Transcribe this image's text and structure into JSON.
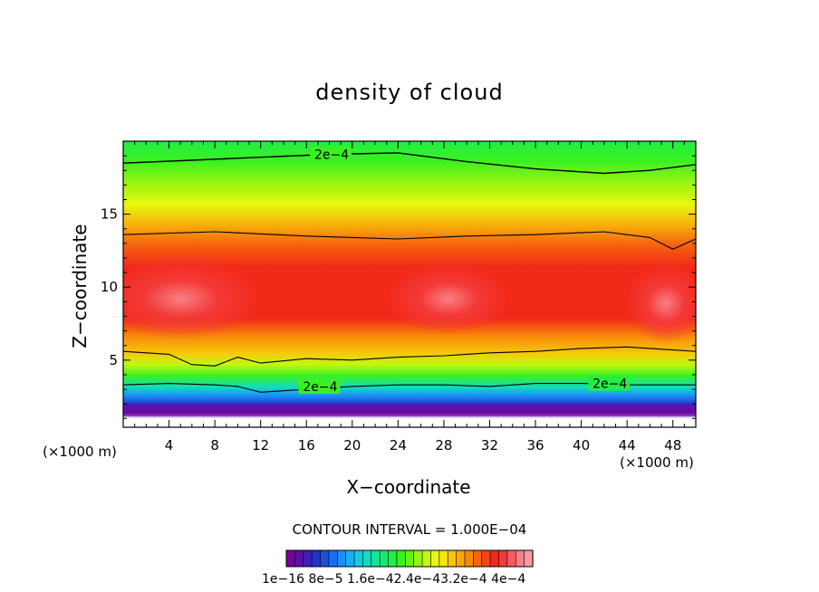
{
  "chart_data": {
    "type": "heatmap",
    "title": "density of cloud",
    "xlabel": "X−coordinate",
    "ylabel": "Z−coordinate",
    "x_unit_label": "(×1000 m)",
    "y_unit_label": "(×1000 m)",
    "xlim": [
      0,
      50
    ],
    "ylim": [
      0.4,
      20
    ],
    "x_ticks": [
      4,
      8,
      12,
      16,
      20,
      24,
      28,
      32,
      36,
      40,
      44,
      48
    ],
    "x_tick_labels": [
      "4",
      "8",
      "12",
      "16",
      "20",
      "24",
      "28",
      "32",
      "36",
      "40",
      "44",
      "48"
    ],
    "y_ticks": [
      5,
      10,
      15
    ],
    "y_tick_labels": [
      "5",
      "10",
      "15"
    ],
    "contour_interval_text": "CONTOUR INTERVAL = 1.000E−04",
    "contour_interval": 0.0001,
    "contour_lines": [
      {
        "level": 0.0002,
        "label": "2e−4",
        "x": [
          0,
          6,
          12,
          18,
          24,
          30,
          36,
          42,
          46,
          50
        ],
        "z": [
          18.5,
          18.7,
          18.9,
          19.1,
          19.2,
          18.6,
          18.1,
          17.8,
          18.0,
          18.4
        ]
      },
      {
        "level": 0.0003,
        "label": "",
        "x": [
          0,
          8,
          16,
          24,
          30,
          36,
          42,
          46,
          48,
          50
        ],
        "z": [
          13.6,
          13.8,
          13.5,
          13.3,
          13.5,
          13.6,
          13.8,
          13.4,
          12.6,
          13.3
        ]
      },
      {
        "level": 0.0003,
        "label": "",
        "x": [
          0,
          4,
          6,
          8,
          10,
          12,
          16,
          20,
          24,
          28,
          32,
          36,
          40,
          44,
          48,
          50
        ],
        "z": [
          5.6,
          5.4,
          4.7,
          4.6,
          5.2,
          4.8,
          5.1,
          5.0,
          5.2,
          5.3,
          5.5,
          5.6,
          5.8,
          5.9,
          5.7,
          5.6
        ]
      },
      {
        "level": 0.0002,
        "label": "2e−4",
        "x": [
          0,
          4,
          8,
          10,
          12,
          16,
          20,
          24,
          28,
          32,
          36,
          40,
          44,
          48,
          50
        ],
        "z": [
          3.3,
          3.4,
          3.3,
          3.2,
          2.8,
          3.0,
          3.2,
          3.3,
          3.3,
          3.2,
          3.4,
          3.4,
          3.3,
          3.3,
          3.3
        ]
      }
    ],
    "color_scale": {
      "colors": [
        "#7b009b",
        "#5c0fae",
        "#3f1cbd",
        "#2233cc",
        "#1e4de0",
        "#1d6ef2",
        "#1c8ff8",
        "#19b0f3",
        "#12cde0",
        "#10dcc0",
        "#12e59a",
        "#18ea70",
        "#22ee44",
        "#3bf020",
        "#64f214",
        "#92f512",
        "#c3f80f",
        "#e8f80d",
        "#f7e60a",
        "#f8c70a",
        "#f8a80a",
        "#f8880a",
        "#f56510",
        "#f44314",
        "#f22818",
        "#f33a38",
        "#f65c62",
        "#f87f85",
        "#fa9aa0"
      ],
      "tick_labels": [
        "1e−16",
        "8e−5",
        "1.6e−4",
        "2.4e−4",
        "3.2e−4",
        "4e−4"
      ],
      "tick_values": [
        1e-16,
        8e-05,
        0.00016,
        0.00024,
        0.00032,
        0.0004
      ]
    }
  }
}
